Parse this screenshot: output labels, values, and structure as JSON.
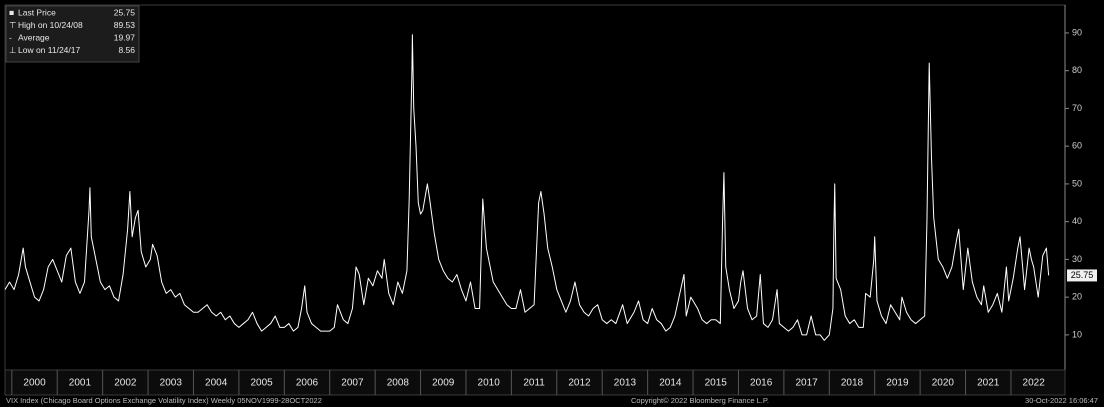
{
  "chart_data": {
    "type": "line",
    "stats": [
      {
        "label": "Last Price",
        "value": 25.75
      },
      {
        "label": "High on 10/24/08",
        "value": 89.53
      },
      {
        "label": "Average",
        "value": 19.97
      },
      {
        "label": "Low on 11/24/17",
        "value": 8.56
      }
    ],
    "footer": {
      "left": "VIX Index (Chicago Board Options Exchange Volatility Index)  Weekly 05NOV1999-28OCT2022",
      "center": "Copyright© 2022 Bloomberg Finance L.P.",
      "right": "30-Oct-2022 16:06:47"
    },
    "xlim": [
      1999.85,
      2023.19
    ],
    "xticks": [
      2000,
      2001,
      2002,
      2003,
      2004,
      2005,
      2006,
      2007,
      2008,
      2009,
      2010,
      2011,
      2012,
      2013,
      2014,
      2015,
      2016,
      2017,
      2018,
      2019,
      2020,
      2021,
      2022
    ],
    "ylim": [
      0.7,
      97.4
    ],
    "yticks": [
      10,
      20,
      30,
      40,
      50,
      60,
      70,
      80,
      90
    ],
    "grid": false,
    "series": [
      {
        "name": "Last Price",
        "color": "#ffffff",
        "x": [
          1999.85,
          1999.95,
          2000.05,
          2000.15,
          2000.25,
          2000.3,
          2000.4,
          2000.5,
          2000.6,
          2000.7,
          2000.8,
          2000.9,
          2001.0,
          2001.1,
          2001.2,
          2001.3,
          2001.4,
          2001.5,
          2001.6,
          2001.7,
          2001.72,
          2001.75,
          2001.85,
          2001.95,
          2002.05,
          2002.15,
          2002.25,
          2002.35,
          2002.45,
          2002.55,
          2002.6,
          2002.65,
          2002.72,
          2002.78,
          2002.85,
          2002.95,
          2003.05,
          2003.1,
          2003.2,
          2003.3,
          2003.4,
          2003.5,
          2003.6,
          2003.7,
          2003.8,
          2003.9,
          2004.0,
          2004.1,
          2004.2,
          2004.3,
          2004.4,
          2004.5,
          2004.6,
          2004.7,
          2004.8,
          2004.9,
          2005.0,
          2005.1,
          2005.2,
          2005.3,
          2005.4,
          2005.5,
          2005.6,
          2005.7,
          2005.8,
          2005.9,
          2006.0,
          2006.1,
          2006.2,
          2006.3,
          2006.38,
          2006.45,
          2006.5,
          2006.6,
          2006.7,
          2006.8,
          2006.9,
          2007.0,
          2007.1,
          2007.17,
          2007.3,
          2007.4,
          2007.5,
          2007.58,
          2007.65,
          2007.75,
          2007.85,
          2007.95,
          2008.05,
          2008.15,
          2008.2,
          2008.3,
          2008.4,
          2008.5,
          2008.6,
          2008.7,
          2008.75,
          2008.81,
          2008.82,
          2008.85,
          2008.9,
          2008.95,
          2009.0,
          2009.05,
          2009.15,
          2009.2,
          2009.3,
          2009.4,
          2009.5,
          2009.6,
          2009.7,
          2009.8,
          2009.9,
          2010.0,
          2010.1,
          2010.2,
          2010.3,
          2010.37,
          2010.45,
          2010.5,
          2010.6,
          2010.7,
          2010.8,
          2010.9,
          2011.0,
          2011.1,
          2011.2,
          2011.3,
          2011.4,
          2011.5,
          2011.6,
          2011.65,
          2011.72,
          2011.8,
          2011.9,
          2012.0,
          2012.1,
          2012.2,
          2012.3,
          2012.4,
          2012.5,
          2012.6,
          2012.7,
          2012.8,
          2012.9,
          2013.0,
          2013.1,
          2013.2,
          2013.3,
          2013.45,
          2013.55,
          2013.7,
          2013.8,
          2013.9,
          2014.0,
          2014.1,
          2014.2,
          2014.3,
          2014.4,
          2014.5,
          2014.6,
          2014.8,
          2014.85,
          2014.95,
          2015.0,
          2015.1,
          2015.2,
          2015.3,
          2015.4,
          2015.5,
          2015.6,
          2015.65,
          2015.68,
          2015.72,
          2015.8,
          2015.9,
          2016.0,
          2016.05,
          2016.1,
          2016.2,
          2016.3,
          2016.4,
          2016.48,
          2016.55,
          2016.65,
          2016.75,
          2016.85,
          2016.9,
          2017.0,
          2017.1,
          2017.2,
          2017.3,
          2017.4,
          2017.5,
          2017.6,
          2017.7,
          2017.8,
          2017.89,
          2018.0,
          2018.08,
          2018.1,
          2018.12,
          2018.15,
          2018.25,
          2018.35,
          2018.45,
          2018.55,
          2018.65,
          2018.75,
          2018.8,
          2018.9,
          2018.98,
          2019.0,
          2019.05,
          2019.15,
          2019.25,
          2019.35,
          2019.45,
          2019.55,
          2019.6,
          2019.7,
          2019.8,
          2019.9,
          2020.0,
          2020.1,
          2020.15,
          2020.2,
          2020.25,
          2020.3,
          2020.4,
          2020.5,
          2020.6,
          2020.7,
          2020.8,
          2020.85,
          2020.95,
          2021.05,
          2021.15,
          2021.25,
          2021.35,
          2021.4,
          2021.5,
          2021.6,
          2021.7,
          2021.8,
          2021.9,
          2021.95,
          2022.05,
          2022.15,
          2022.2,
          2022.3,
          2022.4,
          2022.45,
          2022.5,
          2022.6,
          2022.7,
          2022.78,
          2022.83
        ],
        "values": [
          22,
          24,
          22,
          26,
          33,
          28,
          24,
          20,
          19,
          22,
          28,
          30,
          27,
          24,
          31,
          33,
          24,
          21,
          24,
          43,
          49,
          36,
          30,
          24,
          22,
          23,
          20,
          19,
          26,
          38,
          48,
          36,
          41,
          43,
          32,
          28,
          30,
          34,
          31,
          24,
          21,
          22,
          20,
          21,
          18,
          17,
          16,
          16,
          17,
          18,
          16,
          15,
          16,
          14,
          15,
          13,
          12,
          13,
          14,
          16,
          13,
          11,
          12,
          13,
          15,
          12,
          12,
          13,
          11,
          12,
          17,
          23,
          16,
          13,
          12,
          11,
          11,
          11,
          12,
          18,
          14,
          13,
          17,
          28,
          26,
          18,
          25,
          23,
          27,
          25,
          30,
          21,
          18,
          24,
          21,
          27,
          46,
          80,
          89.53,
          70,
          60,
          45,
          42,
          43,
          50,
          46,
          37,
          30,
          27,
          25,
          24,
          26,
          22,
          19,
          24,
          17,
          17,
          46,
          33,
          30,
          24,
          22,
          20,
          18,
          17,
          17,
          22,
          16,
          17,
          18,
          45,
          48,
          42,
          33,
          28,
          22,
          19,
          16,
          19,
          24,
          18,
          16,
          15,
          17,
          18,
          14,
          13,
          14,
          13,
          18,
          13,
          16,
          19,
          14,
          13,
          17,
          14,
          13,
          11,
          12,
          15,
          26,
          15,
          20,
          19,
          17,
          14,
          13,
          14,
          14,
          13,
          40,
          53,
          28,
          22,
          17,
          19,
          24,
          27,
          17,
          14,
          15,
          26,
          13,
          12,
          14,
          22,
          13,
          12,
          11,
          12,
          14,
          10,
          10,
          15,
          10,
          10,
          8.56,
          10,
          17,
          37,
          50,
          25,
          22,
          15,
          13,
          14,
          12,
          12,
          21,
          20,
          30,
          36,
          19,
          15,
          13,
          18,
          16,
          14,
          20,
          16,
          14,
          13,
          14,
          15,
          40,
          82,
          57,
          41,
          30,
          28,
          25,
          28,
          35,
          38,
          22,
          33,
          24,
          20,
          18,
          23,
          16,
          18,
          21,
          16,
          28,
          19,
          25,
          33,
          36,
          22,
          33,
          30,
          28,
          20,
          31,
          33,
          25.75
        ]
      }
    ]
  }
}
